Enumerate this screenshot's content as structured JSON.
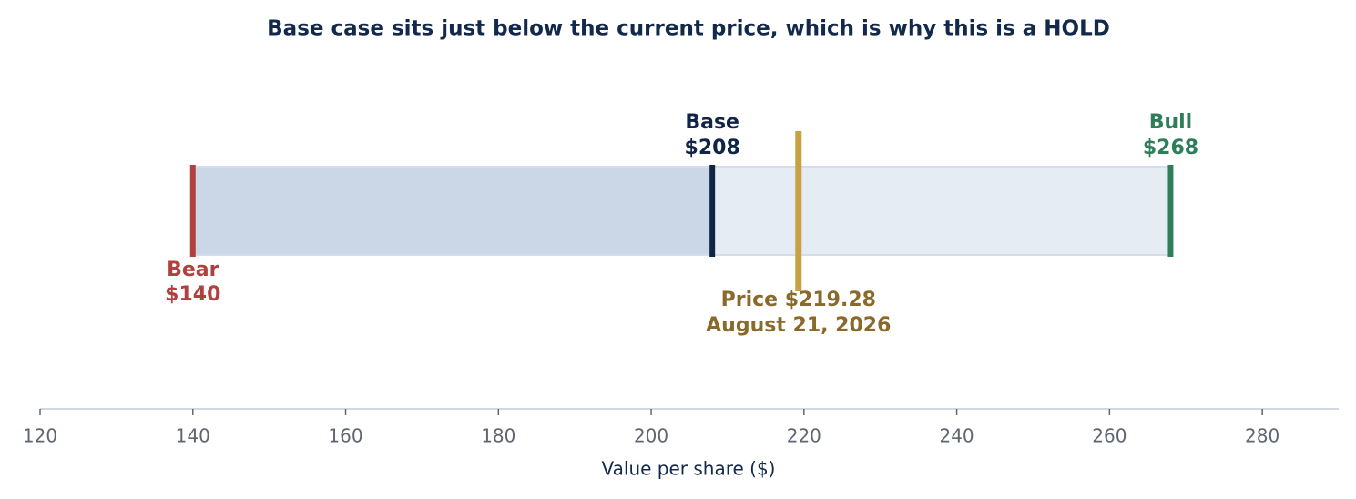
{
  "chart_data": {
    "type": "valuation-range",
    "title": "Base case sits just below the current price, which is why this is a HOLD",
    "categories": [
      "Bear",
      "Base",
      "Bull"
    ],
    "values": [
      140,
      208,
      268
    ],
    "value_labels": [
      "$140",
      "$208",
      "$268"
    ],
    "colors": [
      "#b0413e",
      "#0f2447",
      "#2e7d5b"
    ],
    "band_colors": [
      "#cbd7e6",
      "#e6ecf4"
    ],
    "price": {
      "value": 219.28,
      "value_label": "Price $219.28",
      "date": "August 21, 2026",
      "color": "#c9a044",
      "text_color": "#8a6a2a"
    },
    "xlabel": "Value per share ($)",
    "xlim": [
      120,
      290
    ],
    "xticks": [
      120,
      140,
      160,
      180,
      200,
      220,
      240,
      260,
      280
    ]
  }
}
